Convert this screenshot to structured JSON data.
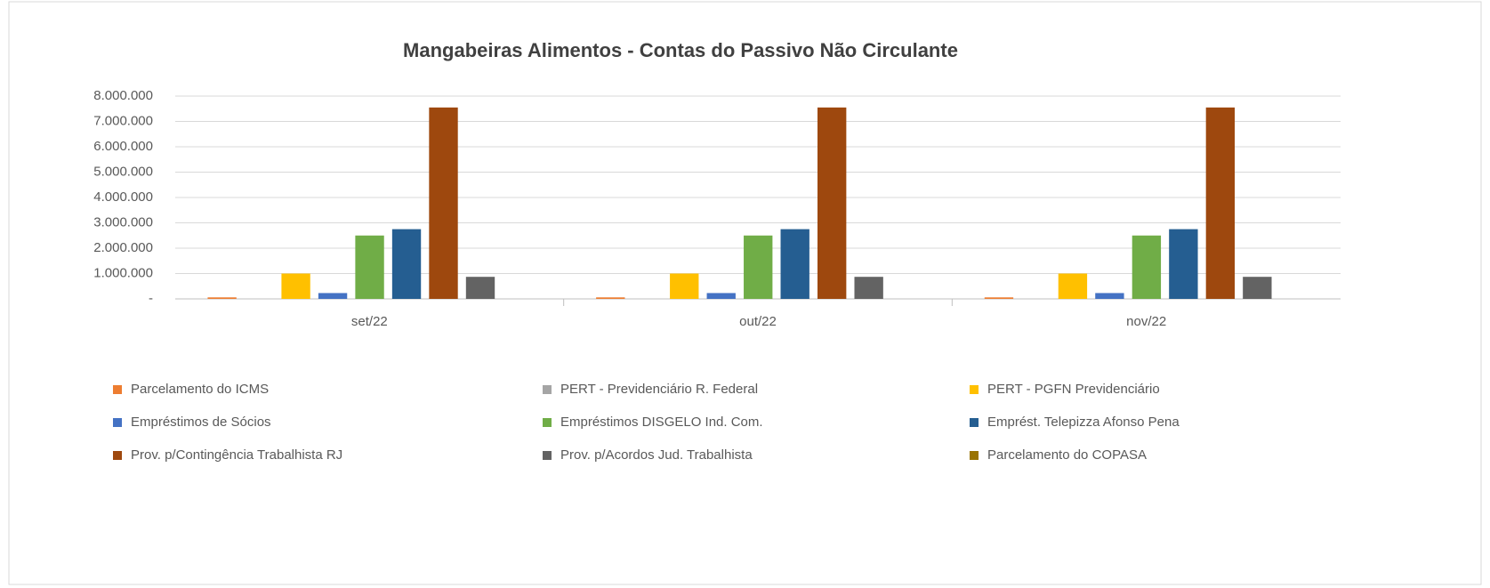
{
  "chart_data": {
    "type": "bar",
    "title": "Mangabeiras Alimentos - Contas do Passivo  Não Circulante",
    "categories": [
      "set/22",
      "out/22",
      "nov/22"
    ],
    "series": [
      {
        "name": "Parcelamento do ICMS",
        "color": "#ED7D31",
        "values": [
          60000,
          60000,
          60000
        ]
      },
      {
        "name": "PERT - Previdenciário R. Federal",
        "color": "#A5A5A5",
        "values": [
          0,
          0,
          0
        ]
      },
      {
        "name": "PERT - PGFN Previdenciário",
        "color": "#FFC000",
        "values": [
          1000000,
          1000000,
          1000000
        ]
      },
      {
        "name": "Empréstimos de Sócios",
        "color": "#4472C4",
        "values": [
          230000,
          230000,
          230000
        ]
      },
      {
        "name": "Empréstimos DISGELO Ind. Com.",
        "color": "#70AD47",
        "values": [
          2500000,
          2500000,
          2500000
        ]
      },
      {
        "name": "Emprést. Telepizza Afonso Pena",
        "color": "#255E91",
        "values": [
          2750000,
          2750000,
          2750000
        ]
      },
      {
        "name": "Prov. p/Contingência Trabalhista RJ",
        "color": "#9E480E",
        "values": [
          7550000,
          7550000,
          7550000
        ]
      },
      {
        "name": "Prov. p/Acordos Jud. Trabalhista",
        "color": "#636363",
        "values": [
          870000,
          870000,
          870000
        ]
      },
      {
        "name": "Parcelamento do COPASA",
        "color": "#997300",
        "values": [
          0,
          0,
          0
        ]
      }
    ],
    "ylim": [
      0,
      8000000
    ],
    "yticks": [
      {
        "value": 0,
        "label": "-"
      },
      {
        "value": 1000000,
        "label": "1.000.000"
      },
      {
        "value": 2000000,
        "label": "2.000.000"
      },
      {
        "value": 3000000,
        "label": "3.000.000"
      },
      {
        "value": 4000000,
        "label": "4.000.000"
      },
      {
        "value": 5000000,
        "label": "5.000.000"
      },
      {
        "value": 6000000,
        "label": "6.000.000"
      },
      {
        "value": 7000000,
        "label": "7.000.000"
      },
      {
        "value": 8000000,
        "label": "8.000.000"
      }
    ],
    "grid": true
  }
}
